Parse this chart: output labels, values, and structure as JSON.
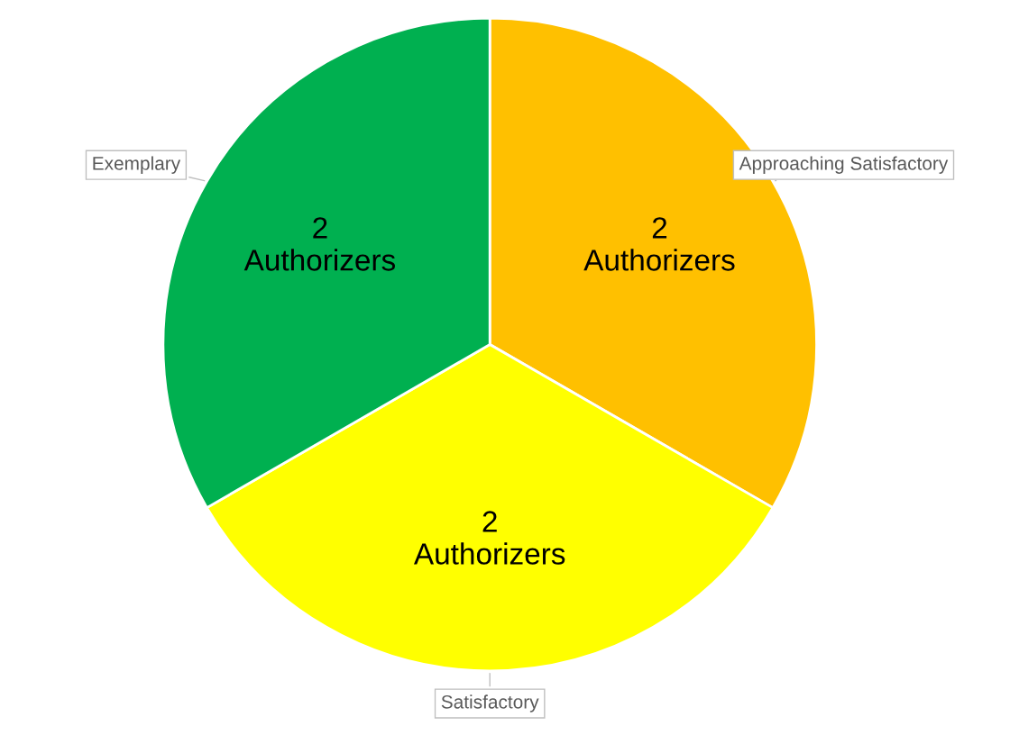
{
  "chart_data": {
    "type": "pie",
    "categories": [
      "Approaching Satisfactory",
      "Satisfactory",
      "Exemplary"
    ],
    "values": [
      2,
      2,
      2
    ],
    "colors": [
      "#ffc000",
      "#ffff00",
      "#00b050"
    ],
    "value_labels": [
      "2\nAuthorizers",
      "2\nAuthorizers",
      "2\nAuthorizers"
    ]
  }
}
